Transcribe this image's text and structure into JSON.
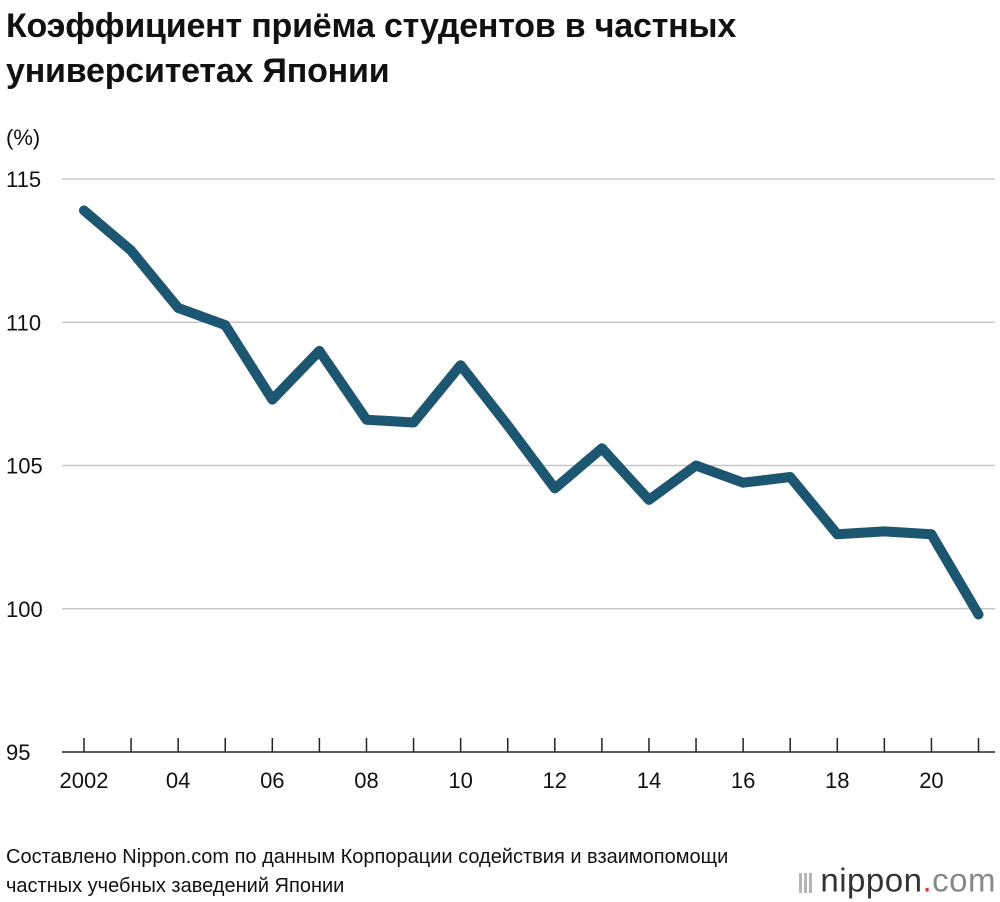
{
  "chart_data": {
    "type": "line",
    "title": "Коэффициент приёма студентов в частных университетах Японии",
    "unit_label": "(%)",
    "ylim": [
      95,
      115
    ],
    "y_ticks": [
      "115",
      "110",
      "105",
      "100",
      "95"
    ],
    "x": [
      2002,
      2003,
      2004,
      2005,
      2006,
      2007,
      2008,
      2009,
      2010,
      2011,
      2012,
      2013,
      2014,
      2015,
      2016,
      2017,
      2018,
      2019,
      2020,
      2021
    ],
    "x_tick_labels": [
      "2002",
      "04",
      "06",
      "08",
      "10",
      "12",
      "14",
      "16",
      "18",
      "20"
    ],
    "series": [
      {
        "values": [
          113.9,
          112.5,
          110.5,
          109.9,
          107.3,
          109.0,
          106.6,
          106.5,
          108.5,
          106.4,
          104.2,
          105.6,
          103.8,
          105.0,
          104.4,
          104.6,
          102.6,
          102.7,
          102.6,
          99.8
        ]
      }
    ],
    "grid": true,
    "line_color": "#1d5670",
    "grid_color": "#c8c8c8"
  },
  "footer": {
    "source": "Составлено Nippon.com по данным Корпорации содействия и взаимопомощи частных учебных заведений Японии",
    "logo": {
      "main": "nippon",
      "dot": ".",
      "com": "com"
    }
  }
}
